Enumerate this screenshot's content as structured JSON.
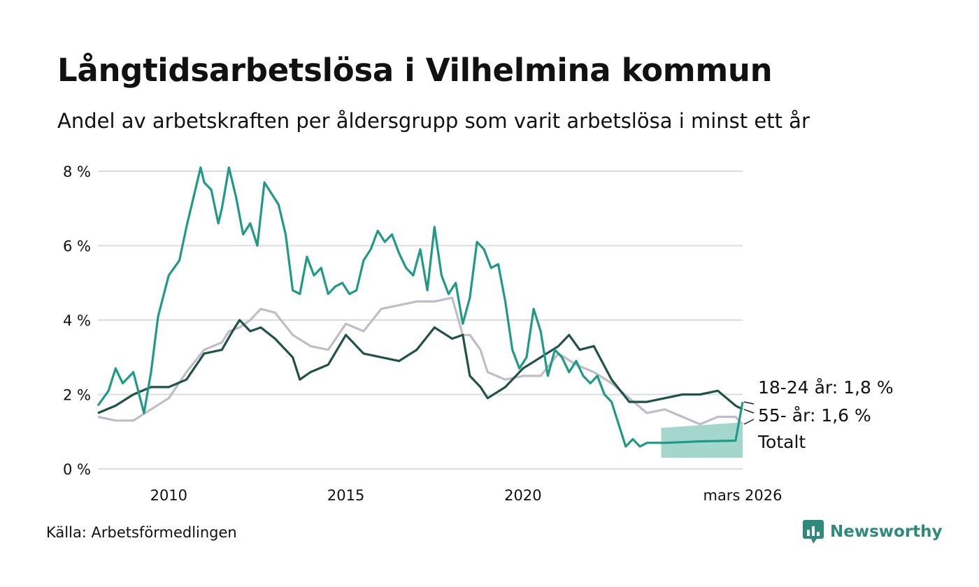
{
  "title": "Långtidsarbetslösa i Vilhelmina kommun",
  "subtitle": "Andel av arbetskraften per åldersgrupp som varit arbetslösa i minst ett år",
  "source": "Källa: Arbetsförmedlingen",
  "brand": "Newsworthy",
  "chart_data": {
    "type": "line",
    "x_unit": "year",
    "xlim": [
      2008.0,
      2026.2
    ],
    "ylim": [
      0,
      8
    ],
    "y_ticks": [
      {
        "value": 0,
        "label": "0 %"
      },
      {
        "value": 2,
        "label": "2 %"
      },
      {
        "value": 4,
        "label": "4 %"
      },
      {
        "value": 6,
        "label": "6 %"
      },
      {
        "value": 8,
        "label": "8 %"
      }
    ],
    "x_ticks": [
      {
        "value": 2010,
        "label": "2010"
      },
      {
        "value": 2015,
        "label": "2015"
      },
      {
        "value": 2020,
        "label": "2020"
      },
      {
        "value": 2026.2,
        "label": "mars 2026"
      }
    ],
    "series": [
      {
        "name": "Totalt",
        "label": "Totalt",
        "color": "#c0bcc8",
        "x": [
          2008.0,
          2008.5,
          2009.0,
          2009.5,
          2010.0,
          2010.5,
          2011.0,
          2011.5,
          2011.7,
          2012.0,
          2012.3,
          2012.6,
          2013.0,
          2013.5,
          2014.0,
          2014.5,
          2015.0,
          2015.5,
          2016.0,
          2016.5,
          2017.0,
          2017.5,
          2018.0,
          2018.3,
          2018.5,
          2018.8,
          2019.0,
          2019.5,
          2020.0,
          2020.5,
          2021.0,
          2021.5,
          2022.0,
          2022.5,
          2023.0,
          2023.5,
          2024.0,
          2024.5,
          2025.0,
          2025.5,
          2026.0,
          2026.2
        ],
        "values": [
          1.4,
          1.3,
          1.3,
          1.6,
          1.9,
          2.6,
          3.2,
          3.4,
          3.7,
          3.8,
          4.0,
          4.3,
          4.2,
          3.6,
          3.3,
          3.2,
          3.9,
          3.7,
          4.3,
          4.4,
          4.5,
          4.5,
          4.6,
          3.6,
          3.6,
          3.2,
          2.6,
          2.4,
          2.5,
          2.5,
          3.1,
          2.8,
          2.6,
          2.3,
          1.9,
          1.5,
          1.6,
          1.4,
          1.2,
          1.4,
          1.4,
          1.2
        ]
      },
      {
        "name": "55- år",
        "label": "55- år: 1,6 %",
        "color": "#215248",
        "x": [
          2008.0,
          2008.5,
          2009.0,
          2009.5,
          2010.0,
          2010.5,
          2011.0,
          2011.5,
          2011.8,
          2012.0,
          2012.3,
          2012.6,
          2013.0,
          2013.5,
          2013.7,
          2014.0,
          2014.5,
          2015.0,
          2015.5,
          2016.0,
          2016.5,
          2017.0,
          2017.5,
          2018.0,
          2018.3,
          2018.5,
          2018.8,
          2019.0,
          2019.5,
          2020.0,
          2020.5,
          2021.0,
          2021.3,
          2021.6,
          2022.0,
          2022.5,
          2023.0,
          2023.5,
          2024.0,
          2024.5,
          2025.0,
          2025.5,
          2026.0,
          2026.2
        ],
        "values": [
          1.5,
          1.7,
          2.0,
          2.2,
          2.2,
          2.4,
          3.1,
          3.2,
          3.7,
          4.0,
          3.7,
          3.8,
          3.5,
          3.0,
          2.4,
          2.6,
          2.8,
          3.6,
          3.1,
          3.0,
          2.9,
          3.2,
          3.8,
          3.5,
          3.6,
          2.5,
          2.2,
          1.9,
          2.2,
          2.7,
          3.0,
          3.3,
          3.6,
          3.2,
          3.3,
          2.4,
          1.8,
          1.8,
          1.9,
          2.0,
          2.0,
          2.1,
          1.7,
          1.6
        ]
      },
      {
        "name": "18-24 år",
        "label": "18-24 år: 1,8 %",
        "color": "#1f9a86",
        "x": [
          2008.0,
          2008.3,
          2008.5,
          2008.7,
          2009.0,
          2009.3,
          2009.5,
          2009.7,
          2010.0,
          2010.3,
          2010.5,
          2010.7,
          2010.9,
          2011.0,
          2011.2,
          2011.4,
          2011.5,
          2011.7,
          2011.9,
          2012.1,
          2012.3,
          2012.5,
          2012.7,
          2012.9,
          2013.1,
          2013.3,
          2013.5,
          2013.7,
          2013.9,
          2014.1,
          2014.3,
          2014.5,
          2014.7,
          2014.9,
          2015.1,
          2015.3,
          2015.5,
          2015.7,
          2015.9,
          2016.1,
          2016.3,
          2016.5,
          2016.7,
          2016.9,
          2017.1,
          2017.3,
          2017.5,
          2017.7,
          2017.9,
          2018.1,
          2018.3,
          2018.5,
          2018.7,
          2018.9,
          2019.1,
          2019.3,
          2019.5,
          2019.7,
          2019.9,
          2020.1,
          2020.3,
          2020.5,
          2020.7,
          2020.9,
          2021.1,
          2021.3,
          2021.5,
          2021.7,
          2021.9,
          2022.1,
          2022.3,
          2022.5,
          2022.7,
          2022.9,
          2023.1,
          2023.3,
          2023.5,
          2024.0,
          2024.5,
          2025.0,
          2025.5,
          2026.0,
          2026.2
        ],
        "values": [
          1.7,
          2.1,
          2.7,
          2.3,
          2.6,
          1.5,
          2.6,
          4.1,
          5.2,
          5.6,
          6.5,
          7.3,
          8.1,
          7.7,
          7.5,
          6.6,
          7.0,
          8.1,
          7.3,
          6.3,
          6.6,
          6.0,
          7.7,
          7.4,
          7.1,
          6.3,
          4.8,
          4.7,
          5.7,
          5.2,
          5.4,
          4.7,
          4.9,
          5.0,
          4.7,
          4.8,
          5.6,
          5.9,
          6.4,
          6.1,
          6.3,
          5.8,
          5.4,
          5.2,
          5.9,
          4.8,
          6.5,
          5.2,
          4.7,
          5.0,
          3.9,
          4.6,
          6.1,
          5.9,
          5.4,
          5.5,
          4.5,
          3.2,
          2.7,
          3.0,
          4.3,
          3.7,
          2.5,
          3.2,
          3.0,
          2.6,
          2.9,
          2.5,
          2.3,
          2.5,
          2.0,
          1.8,
          1.2,
          0.6,
          0.8,
          0.6,
          0.7,
          0.7,
          0.72,
          0.74,
          0.75,
          0.76,
          1.8
        ]
      }
    ],
    "forecast": {
      "series": "18-24 år",
      "x": [
        2023.9,
        2026.2
      ],
      "lower": [
        0.3,
        0.3
      ],
      "upper": [
        1.1,
        1.25
      ],
      "color": "#a3d6cd"
    },
    "grid": true,
    "legend": "inline-right"
  }
}
